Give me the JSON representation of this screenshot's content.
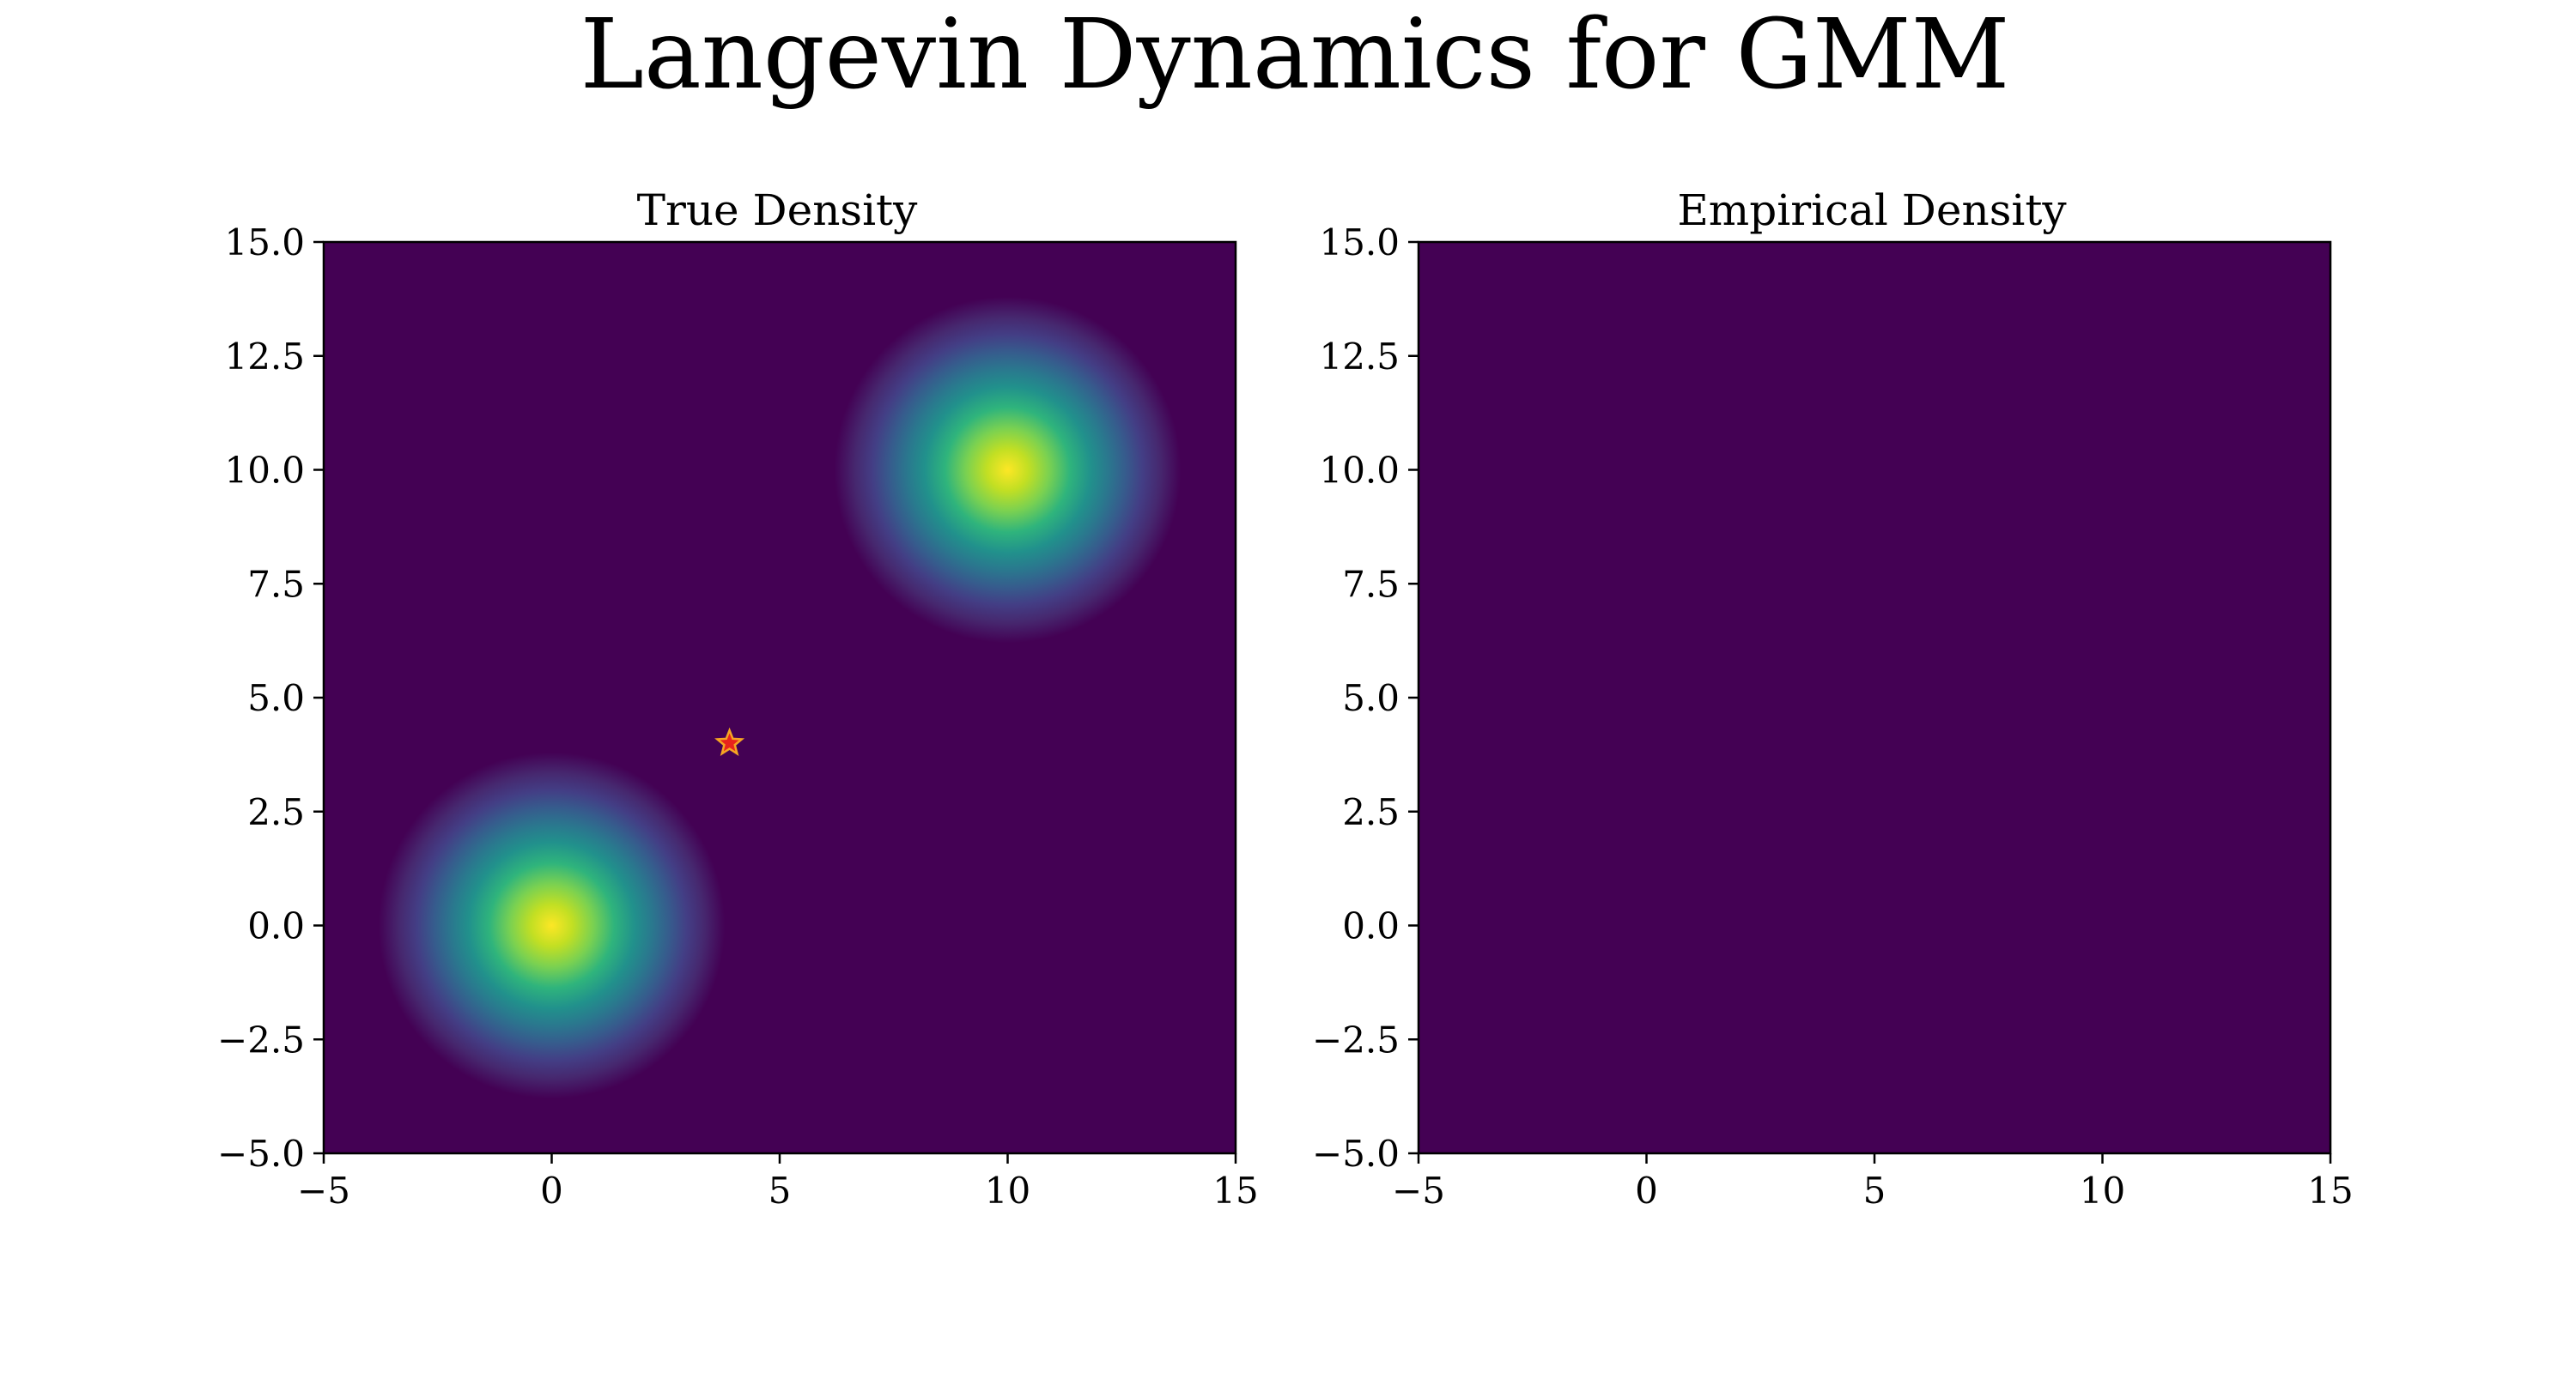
{
  "figure": {
    "title": "Langevin Dynamics for GMM"
  },
  "chart_data": [
    {
      "type": "heatmap",
      "title": "True Density",
      "xlabel": "",
      "ylabel": "",
      "xlim": [
        -5,
        15
      ],
      "ylim": [
        -5,
        15
      ],
      "xticks": [
        -5,
        0,
        5,
        10,
        15
      ],
      "xtick_labels": [
        "−5",
        "0",
        "5",
        "10",
        "15"
      ],
      "yticks": [
        -5.0,
        -2.5,
        0.0,
        2.5,
        5.0,
        7.5,
        10.0,
        12.5,
        15.0
      ],
      "ytick_labels": [
        "−5.0",
        "−2.5",
        "0.0",
        "2.5",
        "5.0",
        "7.5",
        "10.0",
        "12.5",
        "15.0"
      ],
      "colormap": "viridis",
      "background_color": "#440154",
      "components": [
        {
          "mean": [
            0,
            0
          ],
          "std": 1.0,
          "weight": 0.5
        },
        {
          "mean": [
            10,
            10
          ],
          "std": 1.0,
          "weight": 0.5
        }
      ],
      "marker": {
        "shape": "star",
        "x": 3.9,
        "y": 4.0,
        "color": "#e8241c",
        "edge_color": "#f5a623"
      }
    },
    {
      "type": "heatmap",
      "title": "Empirical Density",
      "xlabel": "",
      "ylabel": "",
      "xlim": [
        -5,
        15
      ],
      "ylim": [
        -5,
        15
      ],
      "xticks": [
        -5,
        0,
        5,
        10,
        15
      ],
      "xtick_labels": [
        "−5",
        "0",
        "5",
        "10",
        "15"
      ],
      "yticks": [
        -5.0,
        -2.5,
        0.0,
        2.5,
        5.0,
        7.5,
        10.0,
        12.5,
        15.0
      ],
      "ytick_labels": [
        "−5.0",
        "−2.5",
        "0.0",
        "2.5",
        "5.0",
        "7.5",
        "10.0",
        "12.5",
        "15.0"
      ],
      "colormap": "viridis",
      "background_color": "#440154",
      "components": []
    }
  ]
}
